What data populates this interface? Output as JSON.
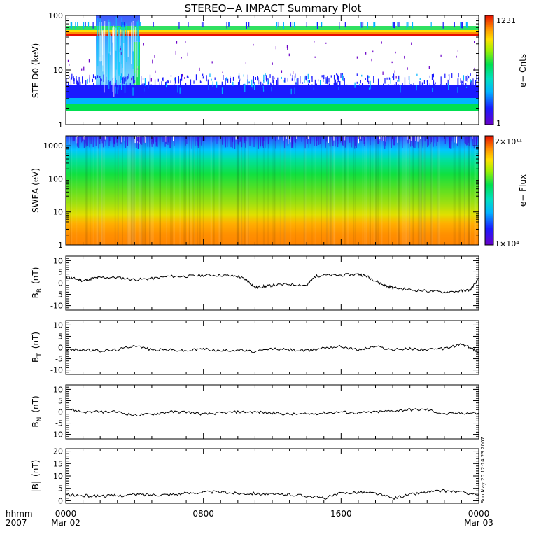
{
  "title": "STEREO−A IMPACT Summary Plot",
  "timestamp_label": "Sun May 20 12:14:23 2007",
  "time_axis": {
    "row1_label": "hhmm",
    "row2_label": "2007",
    "ticks": [
      {
        "hour": 0,
        "line1": "0000",
        "line2": "Mar 02"
      },
      {
        "hour": 8,
        "line1": "0800",
        "line2": ""
      },
      {
        "hour": 16,
        "line1": "1600",
        "line2": ""
      },
      {
        "hour": 24,
        "line1": "0000",
        "line2": "Mar 03"
      }
    ]
  },
  "colorbars": {
    "ste": {
      "top_label": "1231",
      "bottom_label": "1",
      "title": "e− Cnts"
    },
    "swea": {
      "top_label": "2×10¹¹",
      "bottom_label": "1×10⁴",
      "title": "e− Flux"
    }
  },
  "colors": {
    "line": "#000000",
    "background": "#ffffff"
  },
  "chart_data": [
    {
      "type": "heatmap",
      "id": "ste",
      "ylabel": "STE D0 (keV)",
      "yscale": "log",
      "ylim": [
        1,
        100
      ],
      "yticks": [
        "1",
        "10",
        "100"
      ],
      "xlim_hours": [
        0,
        24
      ],
      "zlim": [
        1,
        1231
      ],
      "features": [
        {
          "energy_keV": 2,
          "level": "green",
          "hours": [
            0,
            24
          ]
        },
        {
          "energy_keV": [
            2.5,
            6
          ],
          "level": "blue",
          "hours": [
            0,
            24
          ]
        },
        {
          "energy_keV": [
            60,
            70
          ],
          "level": "yellow-green-red",
          "hours": [
            0,
            24
          ]
        },
        {
          "energy_keV": [
            2,
            100
          ],
          "level": "burst",
          "hours": [
            1.8,
            4.2
          ]
        }
      ]
    },
    {
      "type": "heatmap",
      "id": "swea",
      "ylabel": "SWEA (eV)",
      "yscale": "log",
      "ylim": [
        1,
        2000
      ],
      "yticks": [
        "1",
        "10",
        "100",
        "1000"
      ],
      "xlim_hours": [
        0,
        24
      ],
      "zlim": [
        10000,
        200000000000
      ]
    },
    {
      "type": "line",
      "id": "br",
      "ylabel": "B",
      "ylabel_sub": "R",
      "yunit": "(nT)",
      "ylim": [
        -12,
        12
      ],
      "yticks": [
        "10",
        "5",
        "0",
        "-5",
        "-10"
      ],
      "x": [
        0,
        0.5,
        1,
        1.5,
        2,
        3,
        4,
        5,
        6,
        7,
        8,
        9,
        10,
        10.5,
        11,
        11.5,
        12,
        13,
        14,
        14.5,
        15,
        16,
        17,
        17.5,
        18,
        18.5,
        19,
        20,
        21,
        22,
        23,
        23.5,
        24
      ],
      "y": [
        2.5,
        2,
        1,
        2,
        2.5,
        2.5,
        1.5,
        2,
        3,
        3,
        3.5,
        3.5,
        3,
        1.5,
        -2,
        -1.5,
        -1,
        -0.5,
        -1,
        3,
        3.5,
        3.5,
        4,
        3,
        1,
        -1,
        -2,
        -3,
        -3.5,
        -4,
        -3.5,
        -3,
        2
      ]
    },
    {
      "type": "line",
      "id": "bt",
      "ylabel": "B",
      "ylabel_sub": "T",
      "yunit": "(nT)",
      "ylim": [
        -12,
        12
      ],
      "yticks": [
        "10",
        "5",
        "0",
        "-5",
        "-10"
      ],
      "x": [
        0,
        1,
        2,
        3,
        4,
        5,
        6,
        7,
        8,
        9,
        10,
        11,
        12,
        13,
        14,
        15,
        16,
        17,
        18,
        19,
        20,
        21,
        22,
        23,
        23.5,
        24
      ],
      "y": [
        -1,
        -1,
        -1.5,
        -1,
        1,
        -1,
        -1,
        -1.5,
        -0.5,
        -1.5,
        -1,
        -2,
        -0.5,
        -1,
        -1.5,
        0,
        0.5,
        -1,
        0.5,
        -1,
        -0.5,
        -1,
        -0.5,
        1.5,
        0,
        -2
      ]
    },
    {
      "type": "line",
      "id": "bn",
      "ylabel": "B",
      "ylabel_sub": "N",
      "yunit": "(nT)",
      "ylim": [
        -12,
        12
      ],
      "yticks": [
        "10",
        "5",
        "0",
        "-5",
        "-10"
      ],
      "x": [
        0,
        1,
        2,
        3,
        4,
        5,
        6,
        7,
        8,
        9,
        10,
        11,
        12,
        13,
        14,
        15,
        16,
        17,
        18,
        19,
        20,
        21,
        22,
        23,
        24
      ],
      "y": [
        1.5,
        0,
        0,
        0,
        -1.5,
        -1,
        0,
        0,
        -1,
        -0.5,
        0,
        0,
        -0.5,
        -1,
        -1,
        -0.5,
        0,
        -0.5,
        0,
        0.5,
        1,
        1,
        -1,
        -0.5,
        -0.5
      ]
    },
    {
      "type": "line",
      "id": "bmag",
      "ylabel": "|B|",
      "yunit": "(nT)",
      "ylim": [
        -1,
        21
      ],
      "yticks": [
        "20",
        "15",
        "10",
        "5",
        "0"
      ],
      "x": [
        0,
        1,
        2,
        3,
        4,
        5,
        6,
        7,
        8,
        9,
        10,
        11,
        12,
        13,
        14,
        15,
        16,
        17,
        18,
        19,
        20,
        21,
        22,
        23,
        24
      ],
      "y": [
        2.5,
        2,
        2,
        2,
        2.5,
        2.5,
        2.5,
        3,
        3.5,
        3.5,
        3,
        3,
        2.5,
        2.5,
        2,
        1,
        3,
        3.5,
        3,
        1,
        2.5,
        3.5,
        4,
        3.5,
        2.5
      ]
    }
  ]
}
